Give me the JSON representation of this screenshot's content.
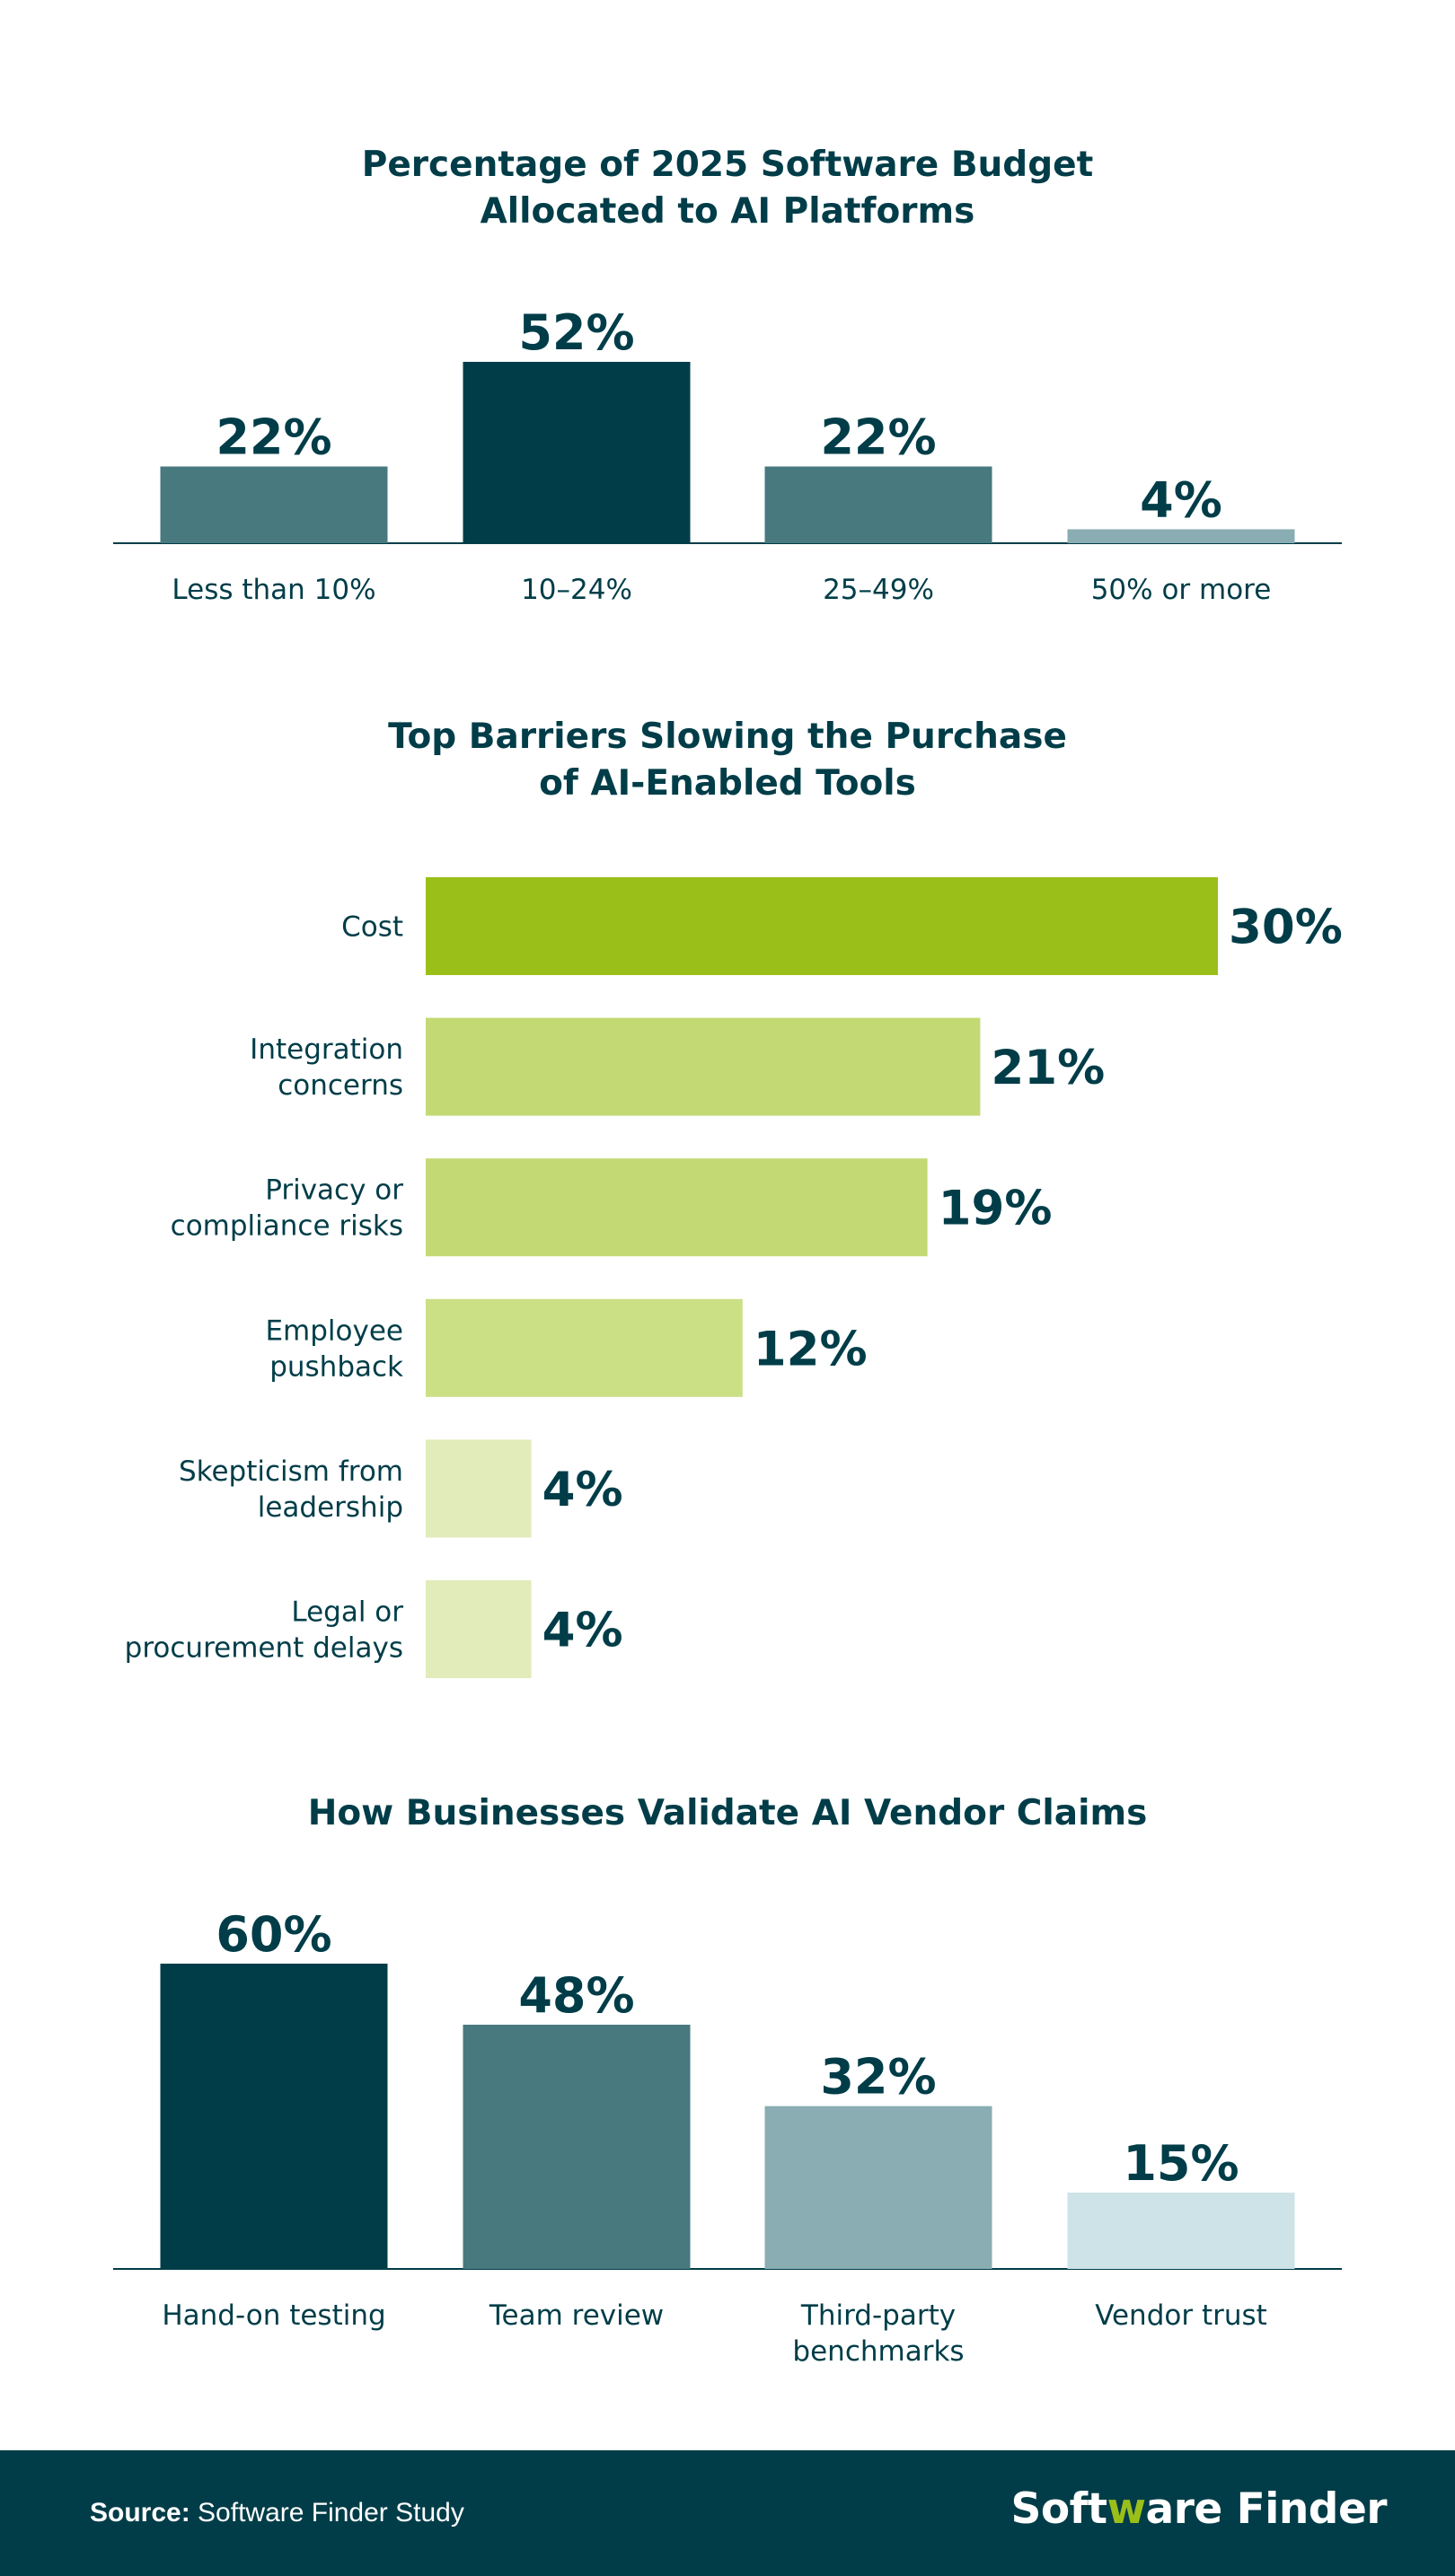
{
  "chart_data": [
    {
      "type": "bar",
      "title_lines": [
        "Percentage of 2025 Software Budget",
        "Allocated to AI Platforms"
      ],
      "categories": [
        "Less than 10%",
        "10–24%",
        "25–49%",
        "50% or more"
      ],
      "values": [
        22,
        52,
        22,
        4
      ],
      "value_labels": [
        "22%",
        "52%",
        "22%",
        "4%"
      ],
      "colors": [
        "#47797f",
        "#003d48",
        "#47797f",
        "#89adb2"
      ],
      "ylim": [
        0,
        52
      ]
    },
    {
      "type": "bar",
      "orientation": "horizontal",
      "title_lines": [
        "Top Barriers Slowing the Purchase",
        "of AI-Enabled Tools"
      ],
      "categories": [
        [
          "Cost"
        ],
        [
          "Integration",
          "concerns"
        ],
        [
          "Privacy or",
          "compliance risks"
        ],
        [
          "Employee",
          "pushback"
        ],
        [
          "Skepticism from",
          "leadership"
        ],
        [
          "Legal or",
          "procurement delays"
        ]
      ],
      "values": [
        30,
        21,
        19,
        12,
        4,
        4
      ],
      "value_labels": [
        "30%",
        "21%",
        "19%",
        "12%",
        "4%",
        "4%"
      ],
      "colors": [
        "#9bbf19",
        "#c3d974",
        "#c3d974",
        "#cbdf85",
        "#e1ecba",
        "#e1ecba"
      ],
      "xlim": [
        0,
        30
      ]
    },
    {
      "type": "bar",
      "title_lines": [
        "How Businesses Validate AI Vendor Claims"
      ],
      "categories": [
        [
          "Hand-on testing"
        ],
        [
          "Team review"
        ],
        [
          "Third-party",
          "benchmarks"
        ],
        [
          "Vendor trust"
        ]
      ],
      "values": [
        60,
        48,
        32,
        15
      ],
      "value_labels": [
        "60%",
        "48%",
        "32%",
        "15%"
      ],
      "colors": [
        "#003d48",
        "#47797f",
        "#89adb2",
        "#cde3e7"
      ],
      "ylim": [
        0,
        60
      ]
    }
  ],
  "footer": {
    "source_label": "Source:",
    "source_text": " Software Finder Study",
    "logo_part1": "Soft",
    "logo_w": "w",
    "logo_part2": "are Finder"
  }
}
